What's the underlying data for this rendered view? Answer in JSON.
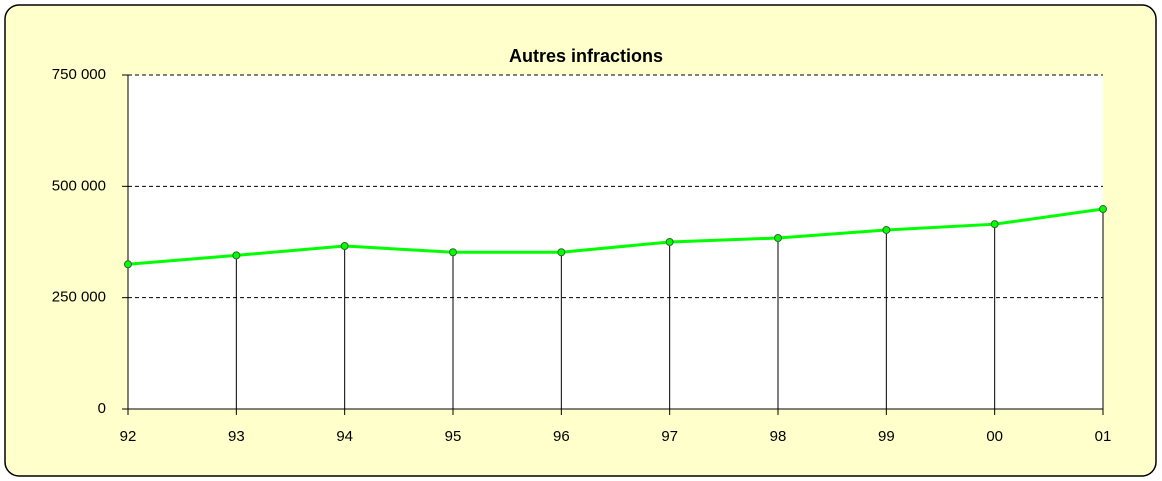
{
  "chart_data": {
    "type": "line",
    "title": "Autres infractions",
    "categories": [
      "92",
      "93",
      "94",
      "95",
      "96",
      "97",
      "98",
      "99",
      "00",
      "01"
    ],
    "values": [
      325000,
      345000,
      366000,
      352000,
      352000,
      375000,
      384000,
      402000,
      415000,
      449000
    ],
    "color": "#00ff00",
    "ylim": [
      0,
      750000
    ],
    "yticks": [
      0,
      {
        "value": 250000,
        "label": "250 000"
      },
      {
        "value": 500000,
        "label": "500 000"
      },
      {
        "value": 750000,
        "label": "750 000"
      }
    ],
    "grid": true
  }
}
